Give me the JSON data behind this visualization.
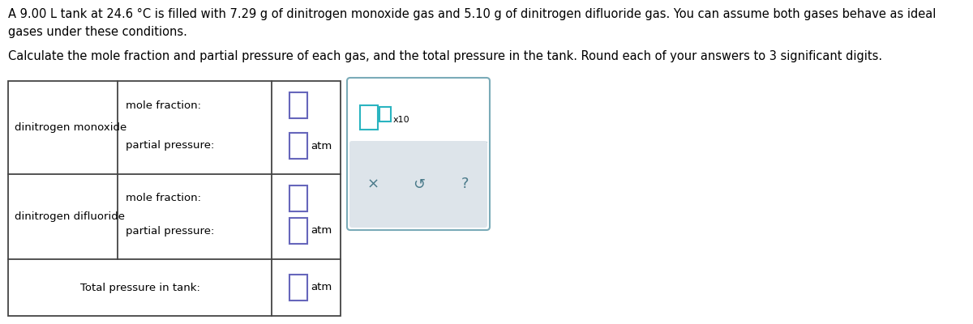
{
  "title_line1": "A 9.00 L tank at 24.6 °C is filled with 7.29 g of dinitrogen monoxide gas and 5.10 g of dinitrogen difluoride gas. You can assume both gases behave as ideal",
  "title_line2": "gases under these conditions.",
  "subtitle": "Calculate the mole fraction and partial pressure of each gas, and the total pressure in the tank. Round each of your answers to 3 significant digits.",
  "gas1_name": "dinitrogen monoxide",
  "gas2_name": "dinitrogen difluoride",
  "label_mole_fraction": "mole fraction:",
  "label_partial_pressure": "partial pressure:",
  "label_total": "Total pressure in tank:",
  "label_atm": "atm",
  "label_x10": "x10",
  "bg_color": "#ffffff",
  "table_border_color": "#444444",
  "input_box_color": "#6666bb",
  "input_box_fill": "#ffffff",
  "popup_border_color": "#7aabb8",
  "popup_bg": "#ffffff",
  "popup_btn_bg": "#dde4ea",
  "popup_btn_text": "#4a7a8a",
  "text_color": "#000000",
  "font_size_body": 10.5,
  "font_size_label": 9.5,
  "font_size_btn": 13,
  "teal_color": "#2ab4c0"
}
